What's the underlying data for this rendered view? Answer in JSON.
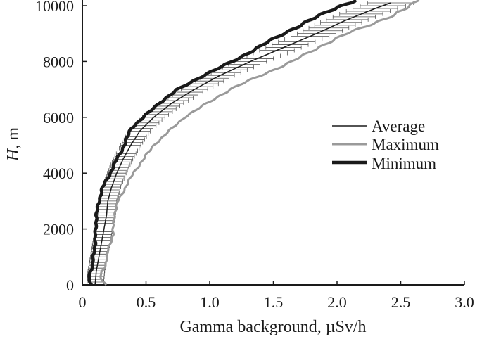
{
  "chart_data": {
    "type": "line",
    "title": "",
    "xlabel": "Gamma background, µSv/h",
    "ylabel_italic": "H",
    "ylabel_rest": ", m",
    "xlim": [
      0,
      3.0
    ],
    "ylim": [
      0,
      10000
    ],
    "x_ticks": [
      0,
      0.5,
      1.0,
      1.5,
      2.0,
      2.5,
      3.0
    ],
    "x_tick_labels": [
      "0",
      "0.5",
      "1.0",
      "1.5",
      "2.0",
      "2.5",
      "3.0"
    ],
    "y_ticks": [
      0,
      2000,
      4000,
      6000,
      8000,
      10000
    ],
    "y_tick_labels": [
      "0",
      "2000",
      "4000",
      "6000",
      "8000",
      "10000"
    ],
    "grid": false,
    "legend_position": "right",
    "series": [
      {
        "name": "Average",
        "color": "#1a1a1a",
        "style": "thin",
        "error_bars": true,
        "points": [
          [
            0.1,
            0
          ],
          [
            0.11,
            500
          ],
          [
            0.13,
            1000
          ],
          [
            0.15,
            1500
          ],
          [
            0.17,
            2000
          ],
          [
            0.19,
            2500
          ],
          [
            0.2,
            3000
          ],
          [
            0.23,
            3500
          ],
          [
            0.27,
            4000
          ],
          [
            0.32,
            4500
          ],
          [
            0.38,
            5000
          ],
          [
            0.45,
            5500
          ],
          [
            0.56,
            6000
          ],
          [
            0.7,
            6500
          ],
          [
            0.88,
            7000
          ],
          [
            1.08,
            7500
          ],
          [
            1.32,
            8000
          ],
          [
            1.58,
            8500
          ],
          [
            1.84,
            9000
          ],
          [
            2.08,
            9500
          ],
          [
            2.3,
            9900
          ],
          [
            2.42,
            10100
          ]
        ]
      },
      {
        "name": "Maximum",
        "color": "#9a9a9a",
        "style": "medium",
        "points": [
          [
            0.18,
            0
          ],
          [
            0.14,
            300
          ],
          [
            0.18,
            700
          ],
          [
            0.2,
            1200
          ],
          [
            0.24,
            1800
          ],
          [
            0.25,
            2500
          ],
          [
            0.28,
            3000
          ],
          [
            0.34,
            3500
          ],
          [
            0.4,
            4000
          ],
          [
            0.48,
            4500
          ],
          [
            0.56,
            5000
          ],
          [
            0.68,
            5500
          ],
          [
            0.8,
            6000
          ],
          [
            0.98,
            6500
          ],
          [
            1.16,
            7000
          ],
          [
            1.4,
            7500
          ],
          [
            1.65,
            8000
          ],
          [
            1.85,
            8500
          ],
          [
            2.08,
            9000
          ],
          [
            2.3,
            9400
          ],
          [
            2.47,
            9700
          ],
          [
            2.58,
            10000
          ],
          [
            2.62,
            10200
          ]
        ]
      },
      {
        "name": "Minimum",
        "color": "#1a1a1a",
        "style": "thick",
        "points": [
          [
            0.07,
            0
          ],
          [
            0.05,
            300
          ],
          [
            0.08,
            700
          ],
          [
            0.1,
            1500
          ],
          [
            0.11,
            2500
          ],
          [
            0.13,
            3000
          ],
          [
            0.16,
            3500
          ],
          [
            0.22,
            4000
          ],
          [
            0.27,
            4500
          ],
          [
            0.33,
            5000
          ],
          [
            0.38,
            5600
          ],
          [
            0.48,
            6000
          ],
          [
            0.6,
            6500
          ],
          [
            0.75,
            7000
          ],
          [
            0.95,
            7500
          ],
          [
            1.18,
            8000
          ],
          [
            1.38,
            8500
          ],
          [
            1.58,
            9000
          ],
          [
            1.8,
            9500
          ],
          [
            2.0,
            9950
          ],
          [
            2.1,
            10100
          ],
          [
            2.14,
            10200
          ]
        ]
      }
    ]
  }
}
